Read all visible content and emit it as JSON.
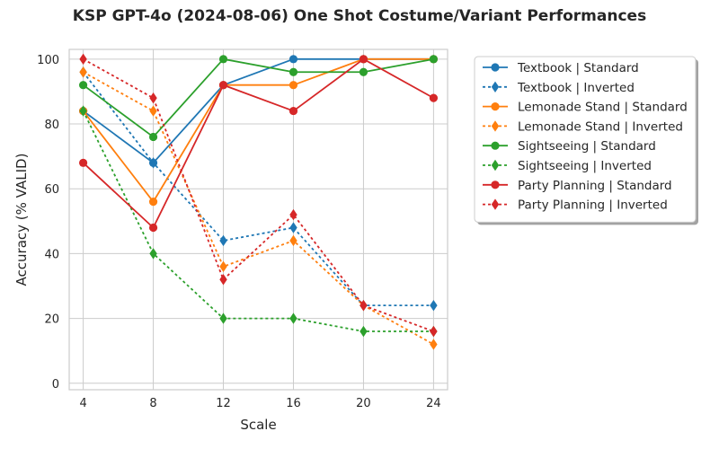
{
  "chart_data": {
    "type": "line",
    "title": "KSP GPT-4o (2024-08-06) One Shot Costume/Variant Performances",
    "xlabel": "Scale",
    "ylabel": "Accuracy (% VALID)",
    "x": [
      4,
      8,
      12,
      16,
      20,
      24
    ],
    "xticks": [
      "4",
      "8",
      "12",
      "16",
      "20",
      "24"
    ],
    "yticks": [
      "0",
      "20",
      "40",
      "60",
      "80",
      "100"
    ],
    "xlim": [
      3.2,
      24.8
    ],
    "ylim": [
      -2,
      103
    ],
    "grid": true,
    "legend_position": "outside-top-right",
    "series": [
      {
        "name": "Textbook | Standard",
        "color": "#1f77b4",
        "style": "solid",
        "marker": "circle",
        "values": [
          84,
          68,
          92,
          100,
          100,
          100
        ]
      },
      {
        "name": "Textbook | Inverted",
        "color": "#1f77b4",
        "style": "dotted",
        "marker": "diamond",
        "values": [
          96,
          68,
          44,
          48,
          24,
          24
        ]
      },
      {
        "name": "Lemonade Stand | Standard",
        "color": "#ff7f0e",
        "style": "solid",
        "marker": "circle",
        "values": [
          84,
          56,
          92,
          92,
          100,
          100
        ]
      },
      {
        "name": "Lemonade Stand | Inverted",
        "color": "#ff7f0e",
        "style": "dotted",
        "marker": "diamond",
        "values": [
          96,
          84,
          36,
          44,
          24,
          12
        ]
      },
      {
        "name": "Sightseeing | Standard",
        "color": "#2ca02c",
        "style": "solid",
        "marker": "circle",
        "values": [
          92,
          76,
          100,
          96,
          96,
          100
        ]
      },
      {
        "name": "Sightseeing | Inverted",
        "color": "#2ca02c",
        "style": "dotted",
        "marker": "diamond",
        "values": [
          84,
          40,
          20,
          20,
          16,
          16
        ]
      },
      {
        "name": "Party Planning | Standard",
        "color": "#d62728",
        "style": "solid",
        "marker": "circle",
        "values": [
          68,
          48,
          92,
          84,
          100,
          88
        ]
      },
      {
        "name": "Party Planning | Inverted",
        "color": "#d62728",
        "style": "dotted",
        "marker": "diamond",
        "values": [
          100,
          88,
          32,
          52,
          24,
          16
        ]
      }
    ]
  }
}
